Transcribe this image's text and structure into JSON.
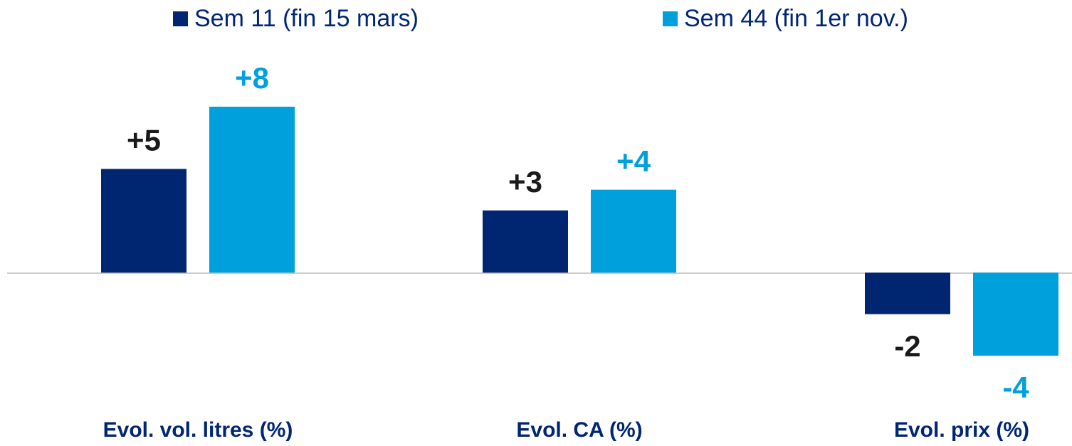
{
  "chart_data": {
    "type": "bar",
    "categories": [
      "Evol. vol. litres (%)",
      "Evol. CA (%)",
      "Evol. prix (%)"
    ],
    "category_color": "#002673",
    "series": [
      {
        "name": "Sem 11 (fin 15 mars)",
        "color": "#002672",
        "label_color": "#1a1a1a",
        "values": [
          5,
          3,
          -2
        ],
        "value_labels": [
          "+5",
          "+3",
          "-2"
        ]
      },
      {
        "name": "Sem 44 (fin 1er nov.)",
        "color": "#00a0dc",
        "label_color": "#00a0dc",
        "values": [
          8,
          4,
          -4
        ],
        "value_labels": [
          "+8",
          "+4",
          "-4"
        ]
      }
    ],
    "legend": "top"
  }
}
